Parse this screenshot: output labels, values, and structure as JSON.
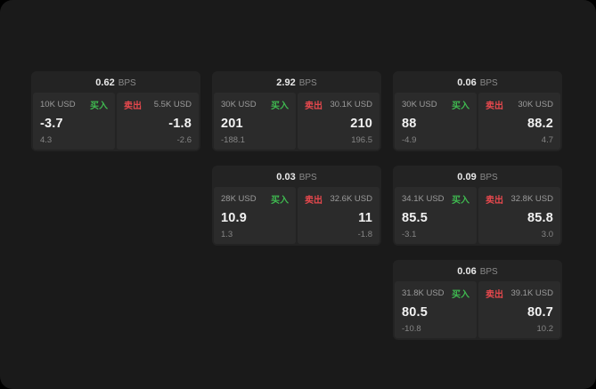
{
  "labels": {
    "bps": "BPS",
    "buy": "买入",
    "sell": "卖出"
  },
  "colors": {
    "buy": "#3fb950",
    "sell": "#e5484d"
  },
  "cards": [
    {
      "spread": "0.62",
      "buy": {
        "size": "10K USD",
        "price": "-3.7",
        "delta": "4.3"
      },
      "sell": {
        "size": "5.5K USD",
        "price": "-1.8",
        "delta": "-2.6"
      }
    },
    {
      "spread": "2.92",
      "buy": {
        "size": "30K USD",
        "price": "201",
        "delta": "-188.1"
      },
      "sell": {
        "size": "30.1K USD",
        "price": "210",
        "delta": "196.5"
      }
    },
    {
      "spread": "0.06",
      "buy": {
        "size": "30K USD",
        "price": "88",
        "delta": "-4.9"
      },
      "sell": {
        "size": "30K USD",
        "price": "88.2",
        "delta": "4.7"
      }
    },
    {
      "spread": "0.03",
      "buy": {
        "size": "28K USD",
        "price": "10.9",
        "delta": "1.3"
      },
      "sell": {
        "size": "32.6K USD",
        "price": "11",
        "delta": "-1.8"
      }
    },
    {
      "spread": "0.09",
      "buy": {
        "size": "34.1K USD",
        "price": "85.5",
        "delta": "-3.1"
      },
      "sell": {
        "size": "32.8K USD",
        "price": "85.8",
        "delta": "3.0"
      }
    },
    {
      "spread": "0.06",
      "buy": {
        "size": "31.8K USD",
        "price": "80.5",
        "delta": "-10.8"
      },
      "sell": {
        "size": "39.1K USD",
        "price": "80.7",
        "delta": "10.2"
      }
    }
  ]
}
